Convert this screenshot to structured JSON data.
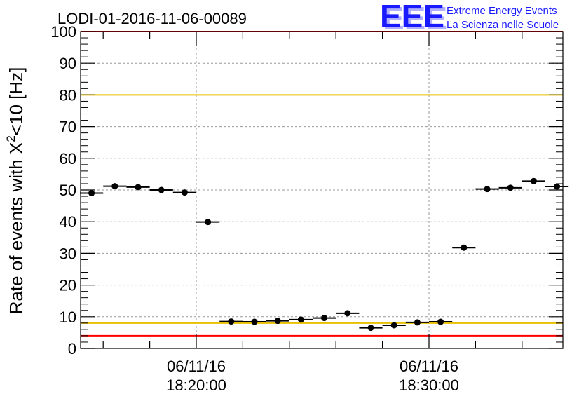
{
  "chart_data": {
    "type": "scatter",
    "title": "LODI-01-2016-11-06-00089",
    "ylabel_prefix": "Rate of events with X",
    "ylabel_sup": "2",
    "ylabel_suffix": "<10 [Hz]",
    "xlabel": "",
    "ylim": [
      0,
      100
    ],
    "y_ticks": [
      "0",
      "10",
      "20",
      "30",
      "40",
      "50",
      "60",
      "70",
      "80",
      "90",
      "100"
    ],
    "x_ticks": [
      {
        "date": "06/11/16",
        "time": "18:20:00"
      },
      {
        "date": "06/11/16",
        "time": "18:30:00"
      }
    ],
    "grid": true,
    "bin_width_minutes": 1,
    "points": [
      {
        "t": "18:15:30",
        "y": 49.0
      },
      {
        "t": "18:16:30",
        "y": 51.2
      },
      {
        "t": "18:17:30",
        "y": 50.9
      },
      {
        "t": "18:18:30",
        "y": 50.0
      },
      {
        "t": "18:19:30",
        "y": 49.2
      },
      {
        "t": "18:20:30",
        "y": 39.9
      },
      {
        "t": "18:21:30",
        "y": 8.5
      },
      {
        "t": "18:22:30",
        "y": 8.4
      },
      {
        "t": "18:23:30",
        "y": 8.7
      },
      {
        "t": "18:24:30",
        "y": 9.1
      },
      {
        "t": "18:25:30",
        "y": 9.6
      },
      {
        "t": "18:26:30",
        "y": 11.1
      },
      {
        "t": "18:27:30",
        "y": 6.5
      },
      {
        "t": "18:28:30",
        "y": 7.3
      },
      {
        "t": "18:29:30",
        "y": 8.2
      },
      {
        "t": "18:30:30",
        "y": 8.4
      },
      {
        "t": "18:31:30",
        "y": 31.8
      },
      {
        "t": "18:32:30",
        "y": 50.3
      },
      {
        "t": "18:33:30",
        "y": 50.7
      },
      {
        "t": "18:34:30",
        "y": 52.8
      },
      {
        "t": "18:35:30",
        "y": 51.1
      }
    ],
    "reference_lines": [
      {
        "y": 100,
        "color": "#ff0000"
      },
      {
        "y": 80,
        "color": "#e8c000"
      },
      {
        "y": 8,
        "color": "#e8c000"
      },
      {
        "y": 4,
        "color": "#ff0000"
      }
    ]
  },
  "logo": {
    "mark": "EEE",
    "line1": "Extreme Energy Events",
    "line2": "La Scienza nelle Scuole",
    "color": "#1a1aff"
  }
}
